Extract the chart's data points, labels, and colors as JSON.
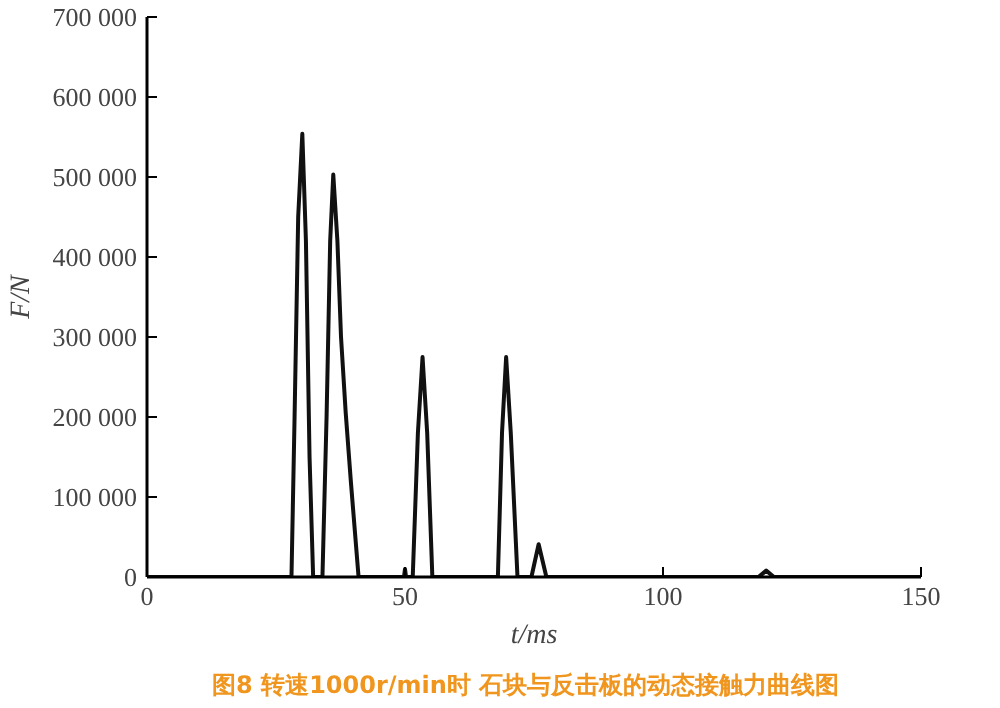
{
  "chart_data": {
    "type": "line",
    "title": "图8  转速1000r/min时  石块与反击板的动态接触力曲线图",
    "xlabel": "t/ms",
    "ylabel": "F/N",
    "x": [
      0,
      28,
      28.6,
      29.3,
      30.1,
      30.8,
      31.5,
      32.2,
      34,
      34.8,
      35.5,
      36.1,
      36.9,
      37.6,
      38.5,
      39.5,
      41,
      49.8,
      50,
      50.2,
      51.5,
      52.5,
      53.4,
      54.3,
      55.3,
      68,
      68.8,
      69.6,
      70.5,
      71.8,
      74.5,
      75.9,
      77.4,
      118.5,
      120,
      121.5,
      150
    ],
    "series": [
      {
        "color": "#111111",
        "values": [
          0,
          0,
          200000,
          450000,
          554000,
          420000,
          150000,
          0,
          0,
          200000,
          420000,
          503000,
          420000,
          300000,
          206000,
          120000,
          0,
          0,
          10000,
          0,
          0,
          180000,
          275000,
          180000,
          0,
          0,
          180000,
          275000,
          180000,
          0,
          0,
          41000,
          0,
          0,
          8000,
          0,
          0
        ]
      }
    ],
    "xlim": [
      0,
      150
    ],
    "xticks": [
      0,
      50,
      100,
      150
    ],
    "ylim": [
      0,
      700000
    ],
    "yticks": [
      0,
      {
        "value": 100000,
        "label": "100 000"
      },
      {
        "value": 200000,
        "label": "200 000"
      },
      {
        "value": 300000,
        "label": "300 000"
      },
      {
        "value": 400000,
        "label": "400 000"
      },
      {
        "value": 500000,
        "label": "500 000"
      },
      {
        "value": 600000,
        "label": "600 000"
      },
      {
        "value": 700000,
        "label": "700 000"
      }
    ],
    "marker": "none",
    "line_style": "solid"
  }
}
